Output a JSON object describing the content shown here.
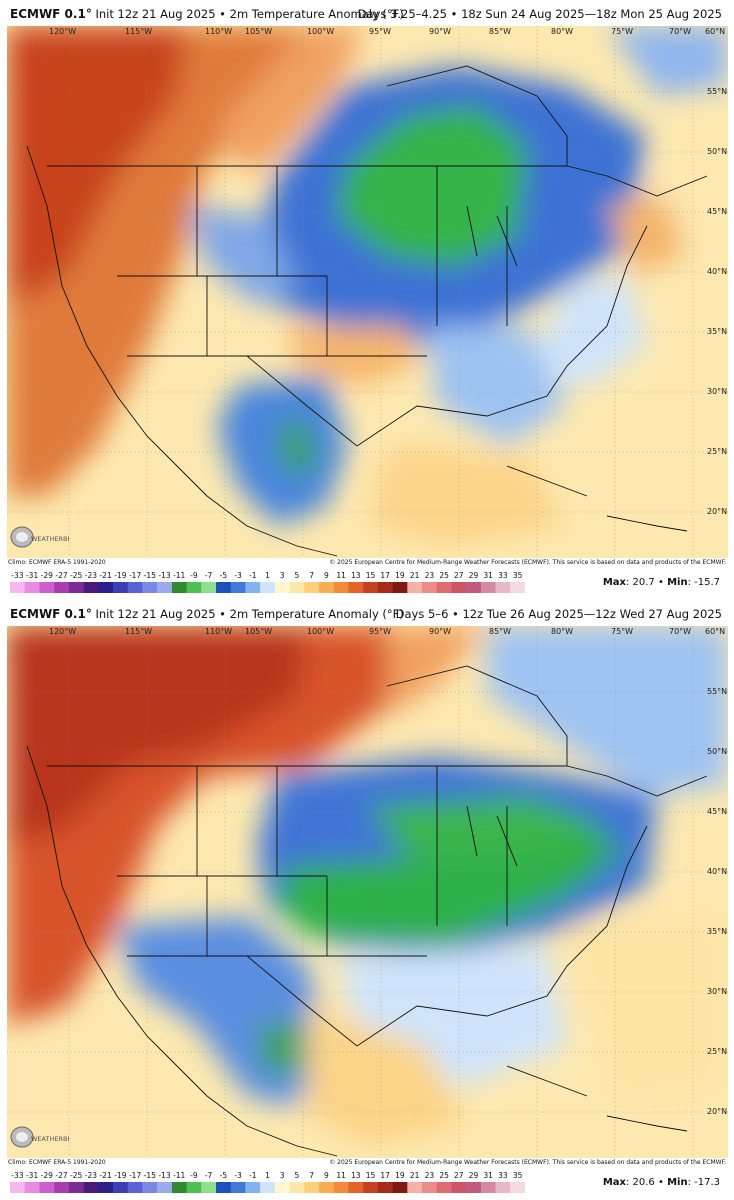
{
  "panels": [
    {
      "model": "ECMWF 0.1°",
      "init": "Init 12z 21 Aug 2025",
      "variable": "2m Temperature Anomaly (°F)",
      "valid": "Days 3.25–4.25 • 18z Sun 24 Aug 2025—18z Mon 25 Aug 2025",
      "climo": "Climo: ECMWF ERA-5 1991-2020",
      "copyright": "© 2025 European Centre for Medium-Range Weather Forecasts (ECMWF). This service is based on data and products of the ECMWF.",
      "max_label": "Max",
      "max_value": "20.7",
      "min_label": "Min",
      "min_value": "-15.7",
      "logo_text": "WEATHERBELL"
    },
    {
      "model": "ECMWF 0.1°",
      "init": "Init 12z 21 Aug 2025",
      "variable": "2m Temperature Anomaly (°F)",
      "valid": "Days 5–6 • 12z Tue 26 Aug 2025—12z Wed 27 Aug 2025",
      "climo": "Climo: ECMWF ERA-5 1991-2020",
      "copyright": "© 2025 European Centre for Medium-Range Weather Forecasts (ECMWF). This service is based on data and products of the ECMWF.",
      "max_label": "Max",
      "max_value": "20.6",
      "min_label": "Min",
      "min_value": "-17.3",
      "logo_text": "WEATHERBELL"
    }
  ],
  "lon_labels": [
    "120°W",
    "115°W",
    "110°W",
    "105°W",
    "100°W",
    "95°W",
    "90°W",
    "85°W",
    "80°W",
    "75°W",
    "70°W",
    "60°N"
  ],
  "lat_labels": [
    "55°N",
    "50°N",
    "45°N",
    "40°N",
    "35°N",
    "30°N",
    "25°N",
    "20°N"
  ],
  "scale_ticks": [
    "-33",
    "-31",
    "-29",
    "-27",
    "-25",
    "-23",
    "-21",
    "-19",
    "-17",
    "-15",
    "-13",
    "-11",
    "-9",
    "-7",
    "-5",
    "-3",
    "-1",
    "1",
    "3",
    "5",
    "7",
    "9",
    "11",
    "13",
    "15",
    "17",
    "19",
    "21",
    "23",
    "25",
    "27",
    "29",
    "31",
    "33",
    "35"
  ],
  "scale_colors": [
    "#f7b6f0",
    "#e98be3",
    "#cf5fcf",
    "#a93bb1",
    "#7d2a96",
    "#4a1c78",
    "#2c1f8c",
    "#3a3fb8",
    "#5a63d6",
    "#7b88e6",
    "#9eaaf0",
    "#2f8a2f",
    "#4fbf4f",
    "#8ee08e",
    "#1e4fbf",
    "#3f7ad9",
    "#84b2ef",
    "#cfe4fb",
    "#fdf7d2",
    "#fde7a6",
    "#fccf7a",
    "#f9ad52",
    "#f38a39",
    "#e4632b",
    "#c6411f",
    "#a52a17",
    "#7e1a12",
    "#f4b3a8",
    "#ea8d87",
    "#dd6d73",
    "#cc5466",
    "#c05a7f",
    "#d48aa1",
    "#e7b9c7",
    "#f3dbe1"
  ]
}
